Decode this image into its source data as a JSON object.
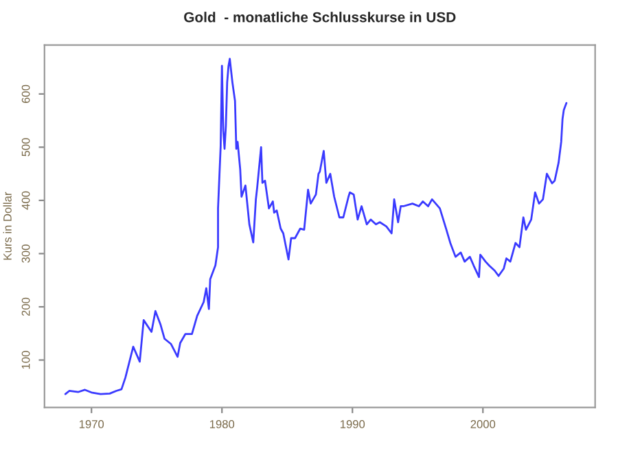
{
  "chart_data": {
    "type": "line",
    "title": "Gold  - monatliche Schlusskurse in USD",
    "ylabel": "Kurs in Dollar",
    "x": [
      1968.0,
      1968.3,
      1969.0,
      1969.5,
      1970.0,
      1970.7,
      1971.4,
      1971.9,
      1972.3,
      1972.6,
      1973.2,
      1973.7,
      1974.0,
      1974.6,
      1974.9,
      1975.3,
      1975.6,
      1976.1,
      1976.6,
      1976.8,
      1977.2,
      1977.7,
      1978.1,
      1978.6,
      1978.8,
      1979.0,
      1979.1,
      1979.5,
      1979.7,
      1979.7,
      1979.9,
      1980.0,
      1980.1,
      1980.2,
      1980.3,
      1980.4,
      1980.5,
      1980.6,
      1980.8,
      1981.0,
      1981.1,
      1981.2,
      1981.4,
      1981.5,
      1981.8,
      1982.1,
      1982.4,
      1982.6,
      1982.7,
      1983.0,
      1983.1,
      1983.3,
      1983.6,
      1983.9,
      1984.0,
      1984.2,
      1984.5,
      1984.7,
      1985.1,
      1985.3,
      1985.6,
      1986.0,
      1986.3,
      1986.6,
      1986.8,
      1987.2,
      1987.4,
      1987.5,
      1987.8,
      1988.0,
      1988.3,
      1988.6,
      1989.0,
      1989.3,
      1989.7,
      1989.8,
      1990.1,
      1990.4,
      1990.7,
      1991.1,
      1991.4,
      1991.8,
      1992.1,
      1992.6,
      1993.0,
      1993.2,
      1993.5,
      1993.7,
      1993.9,
      1994.6,
      1995.1,
      1995.4,
      1995.8,
      1996.1,
      1996.7,
      1997.2,
      1997.5,
      1997.9,
      1998.3,
      1998.6,
      1999.0,
      1999.3,
      1999.7,
      1999.8,
      2000.2,
      2000.5,
      2000.9,
      2001.2,
      2001.6,
      2001.8,
      2002.1,
      2002.5,
      2002.8,
      2003.1,
      2003.3,
      2003.7,
      2004.0,
      2004.3,
      2004.6,
      2004.9,
      2005.3,
      2005.5,
      2005.8,
      2006.0,
      2006.1,
      2006.2,
      2006.4
    ],
    "values": [
      36,
      42,
      40,
      44,
      39,
      36,
      37,
      42,
      45,
      67,
      125,
      97,
      175,
      153,
      192,
      166,
      140,
      130,
      106,
      132,
      149,
      149,
      183,
      209,
      235,
      196,
      252,
      278,
      312,
      385,
      501,
      653,
      531,
      497,
      540,
      622,
      652,
      666,
      622,
      587,
      497,
      510,
      458,
      407,
      428,
      355,
      321,
      402,
      424,
      500,
      433,
      437,
      385,
      398,
      377,
      381,
      347,
      338,
      289,
      329,
      329,
      347,
      345,
      420,
      394,
      411,
      450,
      454,
      493,
      433,
      450,
      407,
      368,
      368,
      407,
      415,
      411,
      364,
      389,
      355,
      364,
      355,
      359,
      351,
      338,
      402,
      359,
      389,
      389,
      394,
      389,
      398,
      389,
      402,
      385,
      345,
      320,
      294,
      302,
      285,
      294,
      277,
      256,
      298,
      285,
      277,
      268,
      258,
      272,
      291,
      285,
      320,
      312,
      368,
      345,
      364,
      415,
      394,
      402,
      450,
      432,
      437,
      471,
      510,
      553,
      570,
      583
    ],
    "color": "#3a3aff",
    "xlim": [
      1966.4,
      2008.6
    ],
    "ylim": [
      11,
      692
    ],
    "xticks": [
      1970,
      1980,
      1990,
      2000
    ],
    "yticks": [
      100,
      200,
      300,
      400,
      500,
      600
    ],
    "grid": false,
    "legend": false
  }
}
